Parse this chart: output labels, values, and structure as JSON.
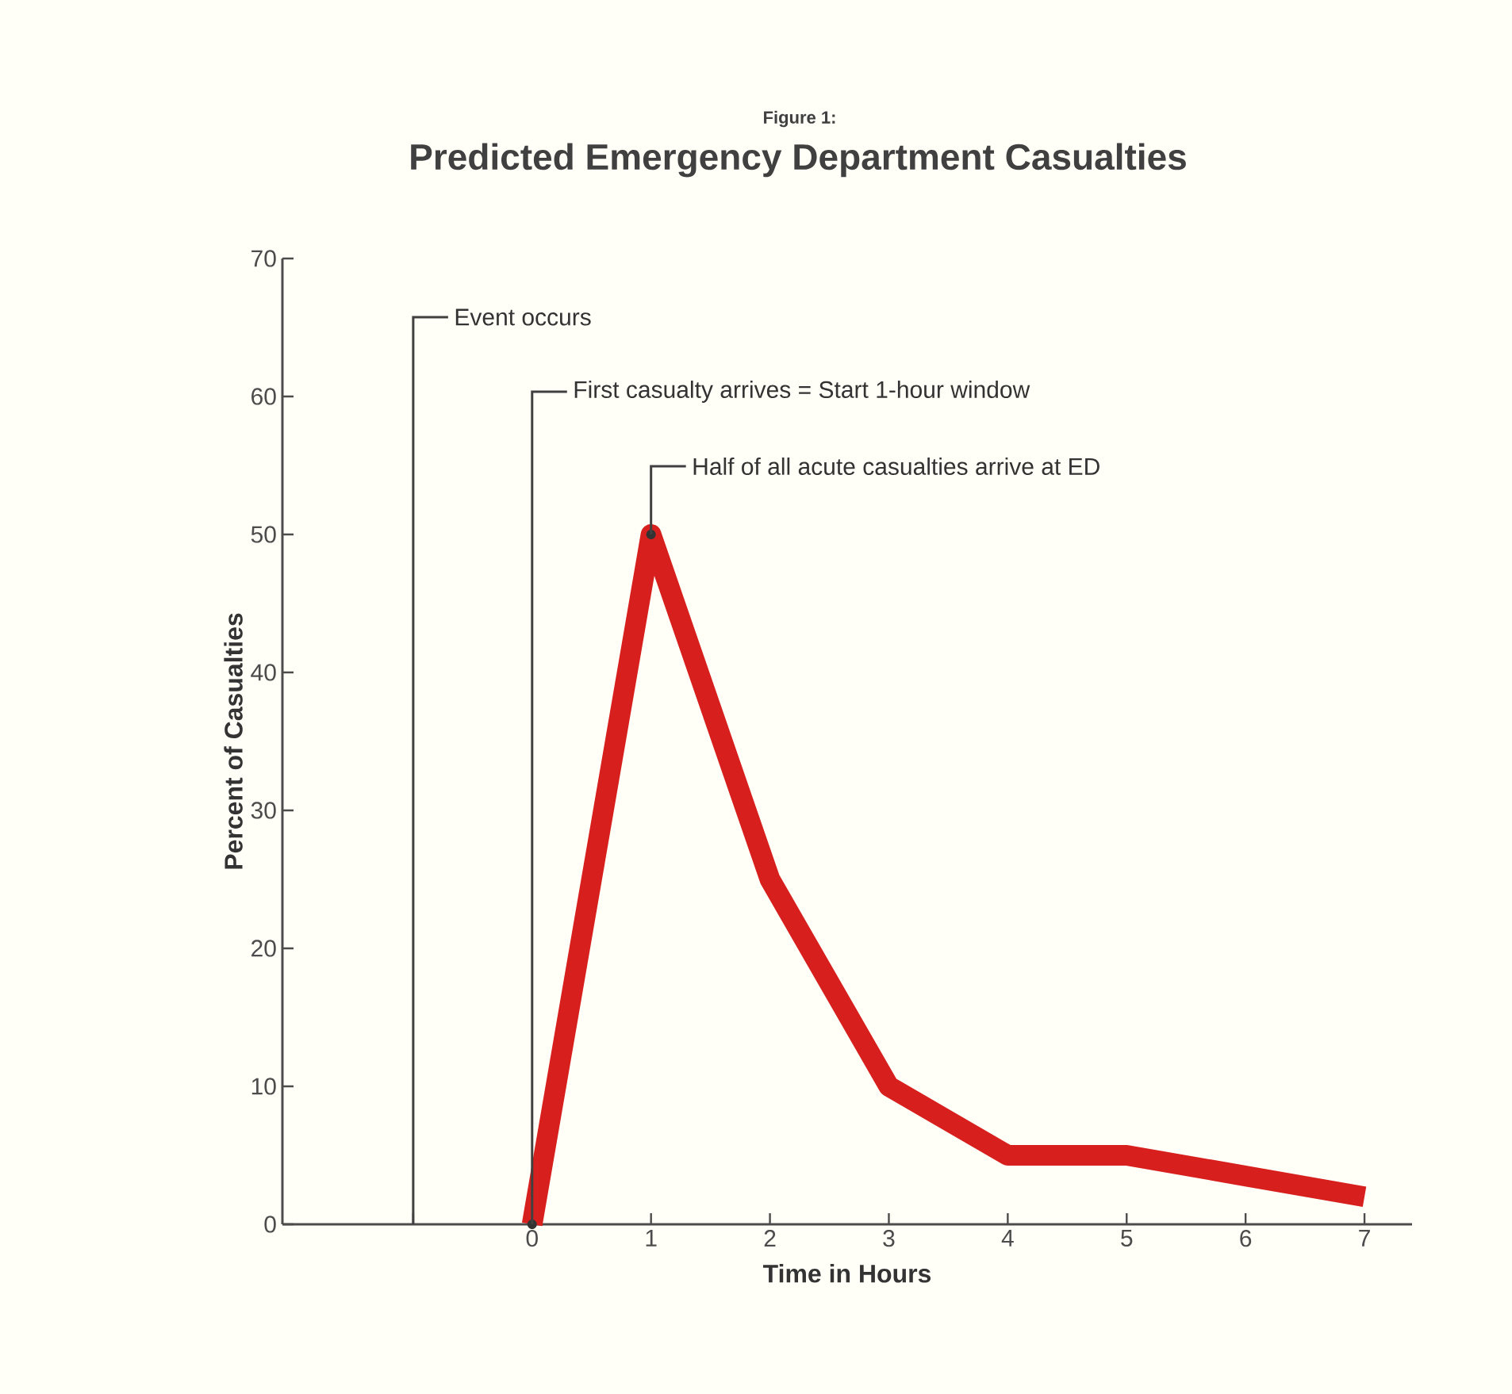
{
  "chart_data": {
    "type": "line",
    "subtitle": "Figure 1:",
    "title": "Predicted Emergency Department Casualties",
    "xlabel": "Time in Hours",
    "ylabel": "Percent of Casualties",
    "x": [
      0,
      1,
      2,
      3,
      4,
      5,
      6,
      7
    ],
    "series": [
      {
        "color": "#d7201e",
        "values": [
          0,
          50,
          25,
          10,
          5,
          5,
          3.5,
          2
        ]
      }
    ],
    "xlim": [
      -2.1,
      7.4
    ],
    "ylim": [
      0,
      70
    ],
    "xticks": [
      {
        "value": -1,
        "label": null
      },
      0,
      1,
      2,
      3,
      4,
      5,
      6,
      7
    ],
    "yticks": [
      0,
      10,
      20,
      30,
      40,
      50,
      60,
      70
    ],
    "grid": false,
    "legend": false,
    "marker": "none",
    "line_style": "solid",
    "ref_lines": [
      {
        "axis": "x",
        "value": -1,
        "label": "Event occurs"
      }
    ],
    "annotations": [
      {
        "text": "First casualty arrives = Start 1-hour window",
        "x": 0,
        "y": 0
      },
      {
        "text": "Half of all acute casualties arrive at ED",
        "x": 1,
        "y": 50
      }
    ]
  }
}
